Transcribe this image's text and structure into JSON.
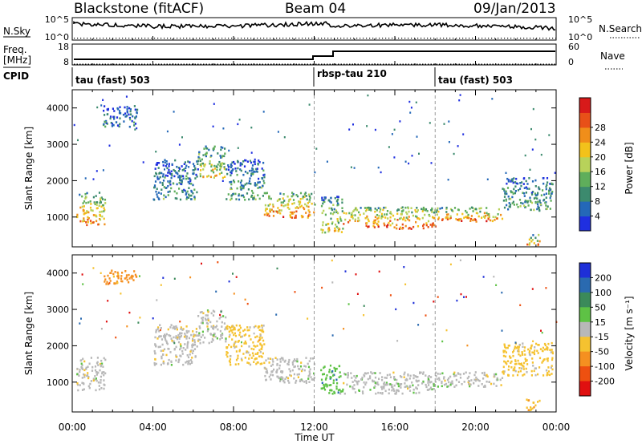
{
  "header": {
    "station": "Blackstone (fitACF)",
    "beam": "Beam 04",
    "date": "09/Jan/2013"
  },
  "noise_panel": {
    "left_label": "N.Sky",
    "right_label": "N.Search",
    "left_ticks": [
      "10^5",
      "10^0"
    ],
    "right_ticks": [
      "10^5",
      "10^0"
    ]
  },
  "freq_panel": {
    "label_line1": "Freq.",
    "label_line2": "[MHz]",
    "right_label": "Nave",
    "left_ticks": [
      "18",
      "8"
    ],
    "right_ticks": [
      "60",
      "0"
    ]
  },
  "cpid": {
    "label": "CPID",
    "segments": [
      {
        "name": "tau (fast) 503",
        "start_hour": 0
      },
      {
        "name": "rbsp-tau 210",
        "start_hour": 12
      },
      {
        "name": "tau (fast) 503",
        "start_hour": 18
      }
    ]
  },
  "x_axis": {
    "title": "Time UT",
    "tick_labels": [
      "00:00",
      "04:00",
      "08:00",
      "12:00",
      "16:00",
      "20:00",
      "00:00"
    ]
  },
  "colors": {
    "power": [
      "#1f2fe0",
      "#2468b8",
      "#3c8a6e",
      "#5fae5b",
      "#b8d25a",
      "#f2c21b",
      "#f08e1a",
      "#e85018",
      "#d81a1a"
    ],
    "velocity": [
      "#1e2fd8",
      "#2a6ab0",
      "#3b8a5a",
      "#5ec245",
      "#b8b8b8",
      "#f5c230",
      "#f59020",
      "#ee5010",
      "#e01010"
    ]
  },
  "chart_data": [
    {
      "type": "heatmap",
      "title": "Power",
      "xlabel": "Time UT",
      "ylabel": "Slant Range [km]",
      "colorbar_label": "Power [dB]",
      "colorbar_ticks": [
        "4",
        "8",
        "12",
        "16",
        "20",
        "24",
        "28"
      ],
      "y_ticks": [
        "1000",
        "2000",
        "3000",
        "4000"
      ],
      "xlim": [
        0,
        24
      ],
      "ylim": [
        180,
        4500
      ],
      "echo_regions": [
        {
          "t0": 0.2,
          "t1": 1.6,
          "r0": 800,
          "r1": 1700,
          "level": 0.75
        },
        {
          "t0": 1.5,
          "t1": 3.2,
          "r0": 3500,
          "r1": 4100,
          "level": 0.25
        },
        {
          "t0": 4.0,
          "t1": 6.2,
          "r0": 1500,
          "r1": 2600,
          "level": 0.3
        },
        {
          "t0": 6.2,
          "t1": 7.6,
          "r0": 2100,
          "r1": 3000,
          "level": 0.6
        },
        {
          "t0": 7.6,
          "t1": 9.5,
          "r0": 1500,
          "r1": 2600,
          "level": 0.35
        },
        {
          "t0": 9.5,
          "t1": 12.0,
          "r0": 1000,
          "r1": 1700,
          "level": 0.8
        },
        {
          "t0": 12.3,
          "t1": 13.4,
          "r0": 600,
          "r1": 1600,
          "level": 0.55
        },
        {
          "t0": 13.4,
          "t1": 18.0,
          "r0": 700,
          "r1": 1300,
          "level": 0.85
        },
        {
          "t0": 18.0,
          "t1": 21.3,
          "r0": 900,
          "r1": 1300,
          "level": 0.8
        },
        {
          "t0": 21.3,
          "t1": 23.8,
          "r0": 1200,
          "r1": 2100,
          "level": 0.35
        },
        {
          "t0": 22.5,
          "t1": 23.2,
          "r0": 250,
          "r1": 550,
          "level": 0.7
        }
      ]
    },
    {
      "type": "heatmap",
      "title": "Velocity",
      "xlabel": "Time UT",
      "ylabel": "Slant Range [km]",
      "colorbar_label": "Velocity [m s⁻¹]",
      "colorbar_ticks": [
        "200",
        "100",
        "50",
        "15",
        "-15",
        "-50",
        "-100",
        "-200"
      ],
      "y_ticks": [
        "1000",
        "2000",
        "3000",
        "4000"
      ],
      "xlim": [
        0,
        24
      ],
      "ylim": [
        180,
        4500
      ],
      "echo_regions": [
        {
          "t0": 0.2,
          "t1": 1.6,
          "r0": 800,
          "r1": 1700,
          "vel": -5
        },
        {
          "t0": 1.5,
          "t1": 3.2,
          "r0": 3700,
          "r1": 4100,
          "vel": -60
        },
        {
          "t0": 4.0,
          "t1": 6.2,
          "r0": 1500,
          "r1": 2600,
          "vel": -10
        },
        {
          "t0": 6.2,
          "t1": 7.6,
          "r0": 2100,
          "r1": 3000,
          "vel": 5
        },
        {
          "t0": 7.6,
          "t1": 9.5,
          "r0": 1500,
          "r1": 2600,
          "vel": -20
        },
        {
          "t0": 9.5,
          "t1": 12.0,
          "r0": 1000,
          "r1": 1700,
          "vel": 0
        },
        {
          "t0": 12.3,
          "t1": 13.4,
          "r0": 700,
          "r1": 1500,
          "vel": 40
        },
        {
          "t0": 13.4,
          "t1": 18.0,
          "r0": 700,
          "r1": 1300,
          "vel": 5
        },
        {
          "t0": 18.0,
          "t1": 21.3,
          "r0": 900,
          "r1": 1300,
          "vel": 0
        },
        {
          "t0": 21.3,
          "t1": 23.8,
          "r0": 1200,
          "r1": 2100,
          "vel": -20
        },
        {
          "t0": 22.5,
          "t1": 23.2,
          "r0": 250,
          "r1": 550,
          "vel": -40
        }
      ]
    }
  ]
}
